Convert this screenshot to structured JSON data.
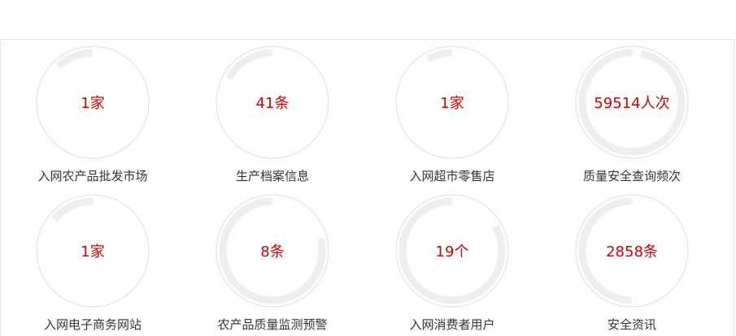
{
  "stats": [
    {
      "value": "1家",
      "label": "入网农产品批发市场",
      "progress": 0.88
    },
    {
      "value": "41条",
      "label": "生产档案信息",
      "progress": 0.83
    },
    {
      "value": "1家",
      "label": "入网超市零售店",
      "progress": 0.92
    },
    {
      "value": "59514人次",
      "label": "质量安全查询频次",
      "progress": 0.03
    },
    {
      "value": "1家",
      "label": "入网电子商务网站",
      "progress": 0.86
    },
    {
      "value": "8条",
      "label": "农产品质量监测预警",
      "progress": 0.21
    },
    {
      "value": "19个",
      "label": "入网消费者用户",
      "progress": 0.17
    },
    {
      "value": "2858条",
      "label": "安全资讯",
      "progress": 0.5
    }
  ],
  "colors": {
    "value_text": "#d40000",
    "label_text": "#333333",
    "ring_track": "#eeeeee",
    "ring_outline": "#dddddd"
  }
}
